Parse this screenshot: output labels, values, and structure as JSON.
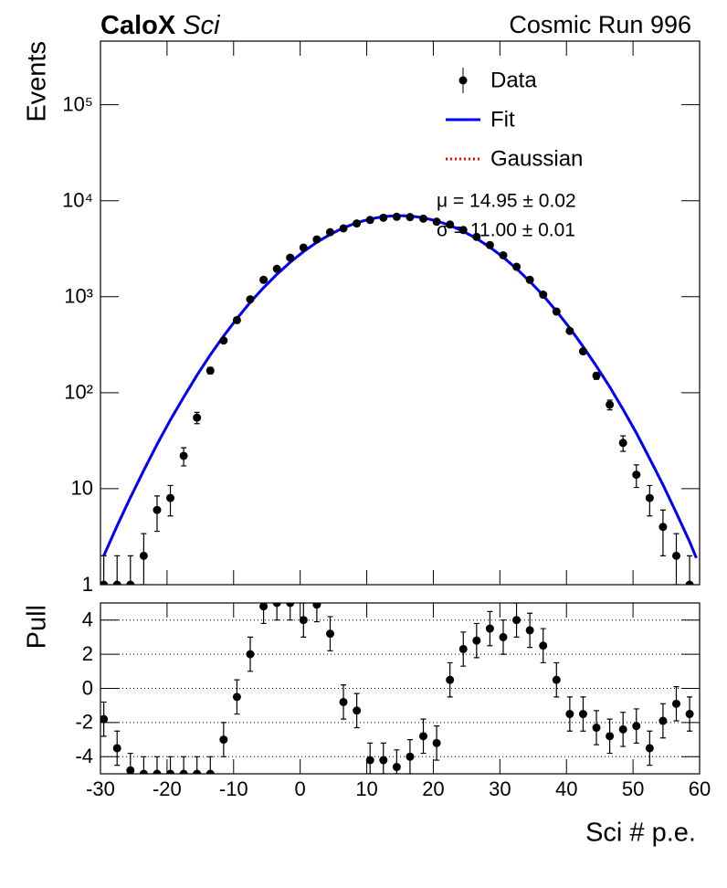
{
  "chart_data": [
    {
      "type": "errorbar",
      "title": "CaloX",
      "subtitle": "Sci",
      "run_label": "Cosmic Run 996",
      "y_label": "Events",
      "log_y": true,
      "legend": "top-right",
      "annotations": [
        "μ = 14.95 ± 0.02",
        "σ = 11.00 ± 0.01"
      ],
      "xlim": [
        -30,
        60
      ],
      "xticks": [
        -30,
        -20,
        -10,
        0,
        10,
        20,
        30,
        40,
        50,
        60
      ],
      "ylim": [
        1,
        460000
      ],
      "yticks": [
        1,
        10,
        {
          "value": 100,
          "label": "10²"
        },
        {
          "value": 1000,
          "label": "10³"
        },
        {
          "value": 10000,
          "label": "10⁴"
        },
        {
          "value": 100000,
          "label": "10⁵"
        }
      ],
      "series": [
        {
          "name": "Data",
          "color": "#000000",
          "x": [
            -29.5,
            -27.5,
            -25.5,
            -23.5,
            -21.5,
            -19.5,
            -17.5,
            -15.5,
            -13.5,
            -11.5,
            -9.5,
            -7.5,
            -5.5,
            -3.5,
            -1.5,
            0.5,
            2.5,
            4.5,
            6.5,
            8.5,
            10.5,
            12.5,
            14.5,
            16.5,
            18.5,
            20.5,
            22.5,
            24.5,
            26.5,
            28.5,
            30.5,
            32.5,
            34.5,
            36.5,
            38.5,
            40.5,
            42.5,
            44.5,
            46.5,
            48.5,
            50.5,
            52.5,
            54.5,
            56.5,
            58.5
          ],
          "values": [
            1,
            1,
            1,
            2,
            6,
            8,
            22,
            55,
            170,
            350,
            570,
            940,
            1500,
            1950,
            2550,
            3250,
            3950,
            4700,
            5150,
            5800,
            6300,
            6650,
            6800,
            6750,
            6500,
            6050,
            5650,
            4950,
            4200,
            3450,
            2700,
            2050,
            1500,
            1050,
            700,
            440,
            270,
            150,
            75,
            30,
            14,
            8,
            4,
            2,
            1
          ],
          "errors": [
            1,
            1,
            1,
            1.4,
            2.4,
            2.8,
            4.7,
            7.4,
            13,
            19,
            24,
            31,
            39,
            44,
            50,
            57,
            63,
            69,
            72,
            76,
            79,
            82,
            82,
            82,
            81,
            78,
            75,
            70,
            65,
            59,
            52,
            45,
            39,
            32,
            26,
            21,
            16,
            12,
            8.7,
            5.5,
            3.7,
            2.8,
            2,
            1.4,
            1
          ]
        },
        {
          "name": "Fit",
          "color": "#0000ff",
          "x": [
            -29.5,
            -27.5,
            -25.5,
            -23.5,
            -21.5,
            -19.5,
            -17.5,
            -15.5,
            -13.5,
            -11.5,
            -9.5,
            -7.5,
            -5.5,
            -3.5,
            -1.5,
            0.5,
            2.5,
            4.5,
            6.5,
            8.5,
            10.5,
            12.5,
            14.5,
            16.5,
            18.5,
            20.5,
            22.5,
            24.5,
            26.5,
            28.5,
            30.5,
            32.5,
            34.5,
            36.5,
            38.5,
            40.5,
            42.5,
            44.5,
            46.5,
            48.5,
            50.5,
            52.5,
            54.5,
            56.5,
            58.5,
            59.5
          ],
          "values": [
            2.0,
            4.1,
            8.1,
            15.5,
            29,
            52,
            90,
            152,
            248,
            389,
            592,
            874,
            1242,
            1714,
            2284,
            2954,
            3690,
            4458,
            5213,
            5894,
            6449,
            6830,
            7000,
            6931,
            6645,
            6165,
            5530,
            4800,
            4035,
            3280,
            2575,
            1960,
            1445,
            1030,
            707,
            470,
            303,
            189,
            115,
            67,
            38,
            20.6,
            11,
            5.6,
            2.8,
            1.9
          ]
        },
        {
          "name": "Gaussian",
          "color": "#ff0000",
          "style": "dotted",
          "x": [
            -29.5,
            -27.5,
            -25.5,
            -23.5,
            -21.5,
            -19.5,
            -17.5,
            -15.5,
            -13.5,
            -11.5,
            -9.5,
            -7.5,
            -5.5,
            -3.5,
            -1.5,
            0.5,
            2.5,
            4.5,
            6.5,
            8.5,
            10.5,
            12.5,
            14.5,
            16.5,
            18.5,
            20.5,
            22.5,
            24.5,
            26.5,
            28.5,
            30.5,
            32.5,
            34.5,
            36.5,
            38.5,
            40.5,
            42.5,
            44.5,
            46.5,
            48.5,
            50.5,
            52.5,
            54.5,
            56.5,
            58.5,
            59.5
          ],
          "values": [
            2.0,
            4.1,
            8.1,
            15.5,
            29,
            52,
            90,
            152,
            248,
            389,
            592,
            874,
            1242,
            1714,
            2284,
            2954,
            3690,
            4458,
            5213,
            5894,
            6449,
            6830,
            7000,
            6931,
            6645,
            6165,
            5530,
            4800,
            4035,
            3280,
            2575,
            1960,
            1445,
            1030,
            707,
            470,
            303,
            189,
            115,
            67,
            38,
            20.6,
            11,
            5.6,
            2.8,
            1.9
          ]
        }
      ]
    },
    {
      "type": "errorbar",
      "y_label": "Pull",
      "x_label": "Sci # p.e.",
      "grid": true,
      "xlim": [
        -30,
        60
      ],
      "xticks": [
        -30,
        -20,
        -10,
        0,
        10,
        20,
        30,
        40,
        50,
        60
      ],
      "ylim": [
        -5,
        5
      ],
      "yticks": [
        -4,
        -2,
        0,
        2,
        4
      ],
      "series": [
        {
          "color": "#000000",
          "x": [
            -29.5,
            -27.5,
            -25.5,
            -23.5,
            -21.5,
            -19.5,
            -17.5,
            -15.5,
            -13.5,
            -11.5,
            -9.5,
            -7.5,
            -5.5,
            -3.5,
            -1.5,
            0.5,
            2.5,
            4.5,
            6.5,
            8.5,
            10.5,
            12.5,
            14.5,
            16.5,
            18.5,
            20.5,
            22.5,
            24.5,
            26.5,
            28.5,
            30.5,
            32.5,
            34.5,
            36.5,
            38.5,
            40.5,
            42.5,
            44.5,
            46.5,
            48.5,
            50.5,
            52.5,
            54.5,
            56.5,
            58.5
          ],
          "values": [
            -1.8,
            -3.5,
            -4.8,
            -5,
            -5,
            -5,
            -5,
            -5,
            -5,
            -3,
            -0.5,
            2.0,
            4.8,
            5,
            5,
            4,
            4.9,
            3.2,
            -0.8,
            -1.3,
            -4.2,
            -4.2,
            -4.6,
            -4,
            -2.8,
            -3.2,
            0.5,
            2.3,
            2.8,
            3.5,
            3.0,
            4.0,
            3.4,
            2.5,
            0.5,
            -1.5,
            -1.5,
            -2.3,
            -2.8,
            -2.4,
            -2.2,
            -3.5,
            -1.9,
            -0.9,
            -1.5
          ],
          "errors": [
            1,
            1,
            1,
            1,
            1,
            1,
            1,
            1,
            1,
            1,
            1,
            1,
            1,
            1,
            1,
            1,
            1,
            1,
            1,
            1,
            1,
            1,
            1,
            1,
            1,
            1,
            1,
            1,
            1,
            1,
            1,
            1,
            1,
            1,
            1,
            1,
            1,
            1,
            1,
            1,
            1,
            1,
            1,
            1,
            1
          ]
        }
      ]
    }
  ]
}
